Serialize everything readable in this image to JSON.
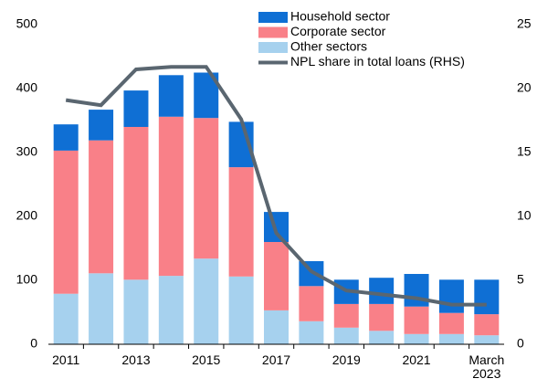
{
  "chart_data": {
    "type": "bar",
    "stacked": true,
    "categories": [
      "2011",
      null,
      "2013",
      null,
      "2015",
      null,
      "2017",
      null,
      "2019",
      null,
      "2021",
      null,
      "March 2023"
    ],
    "series": [
      {
        "name": "Household sector",
        "color": "#0f6fd4",
        "values": [
          41,
          48,
          57,
          65,
          71,
          71,
          47,
          39,
          38,
          41,
          51,
          52,
          54
        ]
      },
      {
        "name": "Corporate sector",
        "color": "#f98088",
        "values": [
          224,
          208,
          239,
          249,
          220,
          171,
          107,
          55,
          37,
          42,
          43,
          33,
          33
        ]
      },
      {
        "name": "Other sectors",
        "color": "#a6d1ee",
        "values": [
          79,
          111,
          101,
          107,
          134,
          106,
          53,
          36,
          26,
          21,
          16,
          16,
          14
        ]
      },
      {
        "name": "NPL share in total loans (RHS)",
        "color": "#5a6670",
        "type": "line",
        "axis": "y2",
        "values": [
          19.1,
          18.7,
          21.5,
          21.7,
          21.7,
          17.6,
          8.7,
          5.7,
          4.2,
          3.9,
          3.6,
          3.1,
          3.1
        ]
      }
    ],
    "ylim": [
      0,
      500
    ],
    "yticks": [
      0,
      100,
      200,
      300,
      400,
      500
    ],
    "y2lim": [
      0,
      25
    ],
    "y2ticks": [
      0,
      5,
      10,
      15,
      20,
      25
    ],
    "grid": false,
    "legend": "top"
  }
}
